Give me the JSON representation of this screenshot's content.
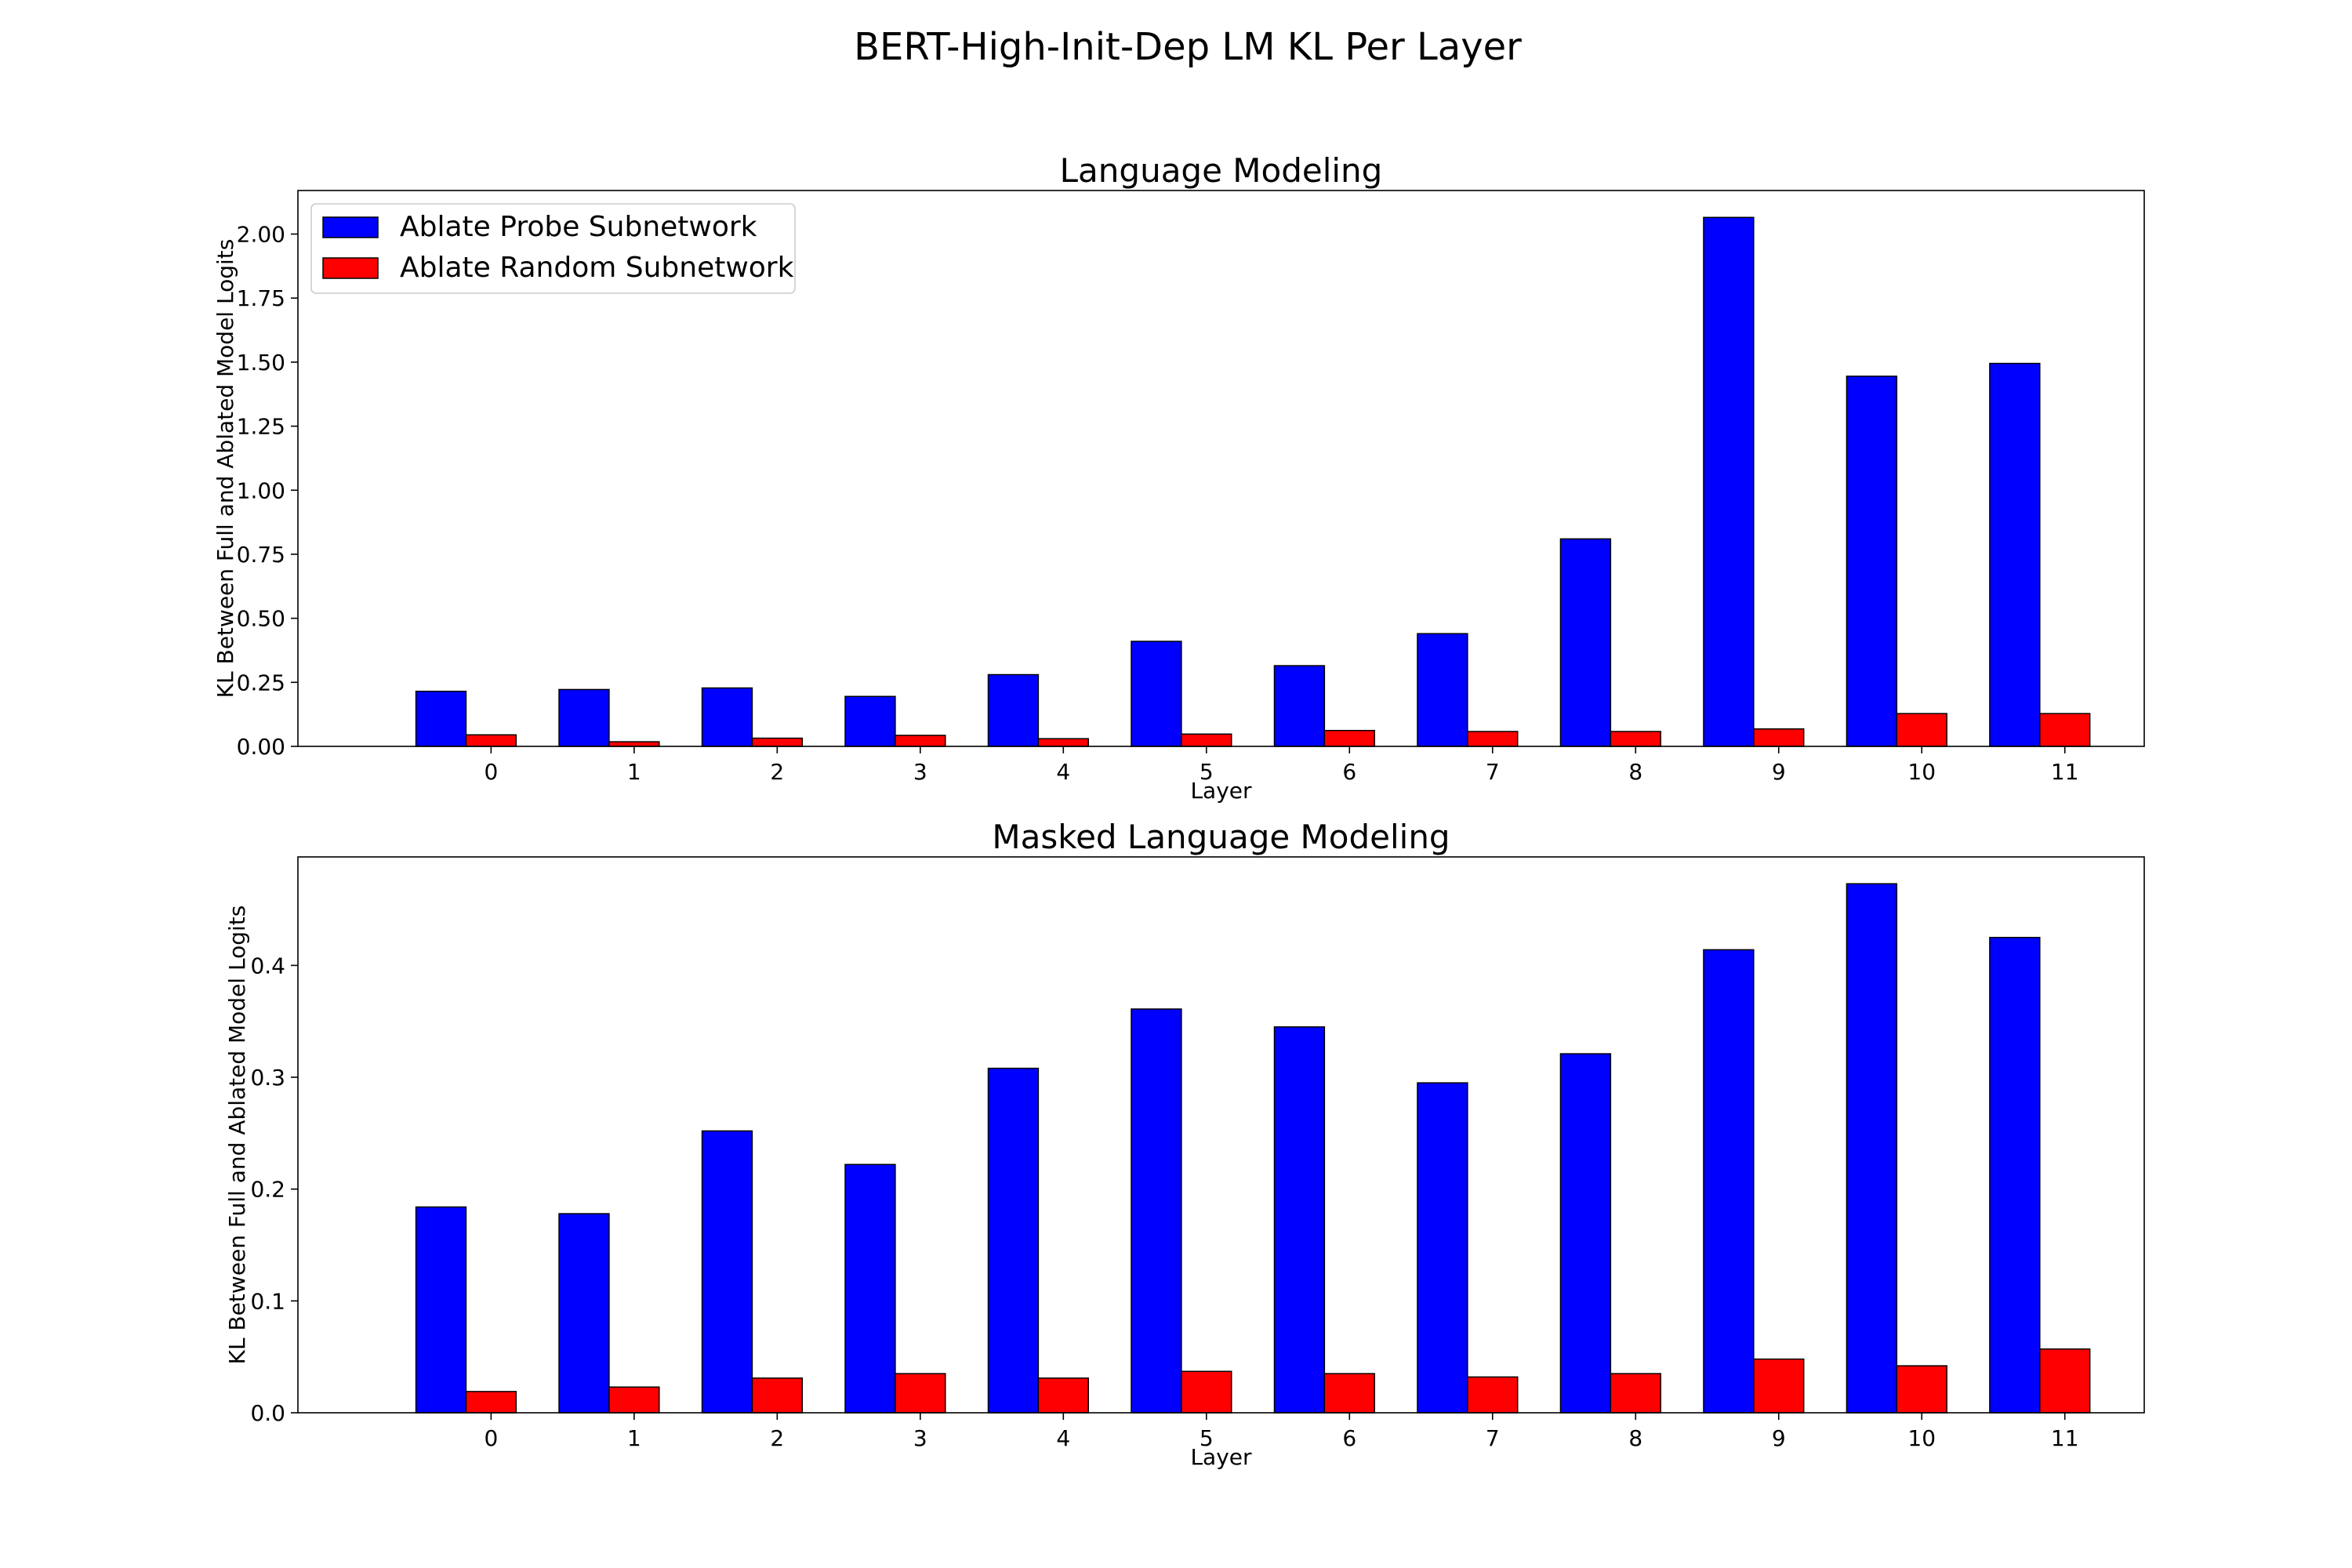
{
  "figure": {
    "suptitle": "BERT-High-Init-Dep LM KL Per Layer"
  },
  "colors": {
    "series_probe": "#0000ff",
    "series_random": "#ff0000",
    "edge": "#000000"
  },
  "chart_data": [
    {
      "type": "bar",
      "title": "Language Modeling",
      "xlabel": "Layer",
      "ylabel": "KL Between Full and Ablated Model Logits",
      "categories": [
        "0",
        "1",
        "2",
        "3",
        "4",
        "5",
        "6",
        "7",
        "8",
        "9",
        "10",
        "11"
      ],
      "ylim": [
        0,
        2.17
      ],
      "yticks": [
        "0.00",
        "0.25",
        "0.50",
        "0.75",
        "1.00",
        "1.25",
        "1.50",
        "1.75",
        "2.00"
      ],
      "grid": false,
      "legend": "upper-left",
      "series": [
        {
          "name": "Ablate Probe Subnetwork",
          "color": "#0000ff",
          "values": [
            0.215,
            0.222,
            0.228,
            0.195,
            0.28,
            0.41,
            0.315,
            0.44,
            0.81,
            2.065,
            1.445,
            1.495
          ]
        },
        {
          "name": "Ablate Random Subnetwork",
          "color": "#ff0000",
          "values": [
            0.045,
            0.018,
            0.032,
            0.043,
            0.03,
            0.048,
            0.062,
            0.058,
            0.058,
            0.068,
            0.128,
            0.128
          ]
        }
      ]
    },
    {
      "type": "bar",
      "title": "Masked Language Modeling",
      "xlabel": "Layer",
      "ylabel": "KL Between Full and Ablated Model Logits",
      "categories": [
        "0",
        "1",
        "2",
        "3",
        "4",
        "5",
        "6",
        "7",
        "8",
        "9",
        "10",
        "11"
      ],
      "ylim": [
        0,
        0.497
      ],
      "yticks": [
        "0.0",
        "0.1",
        "0.2",
        "0.3",
        "0.4"
      ],
      "grid": false,
      "legend": "none",
      "series": [
        {
          "name": "Ablate Probe Subnetwork",
          "color": "#0000ff",
          "values": [
            0.184,
            0.178,
            0.252,
            0.222,
            0.308,
            0.361,
            0.345,
            0.295,
            0.321,
            0.414,
            0.473,
            0.425
          ]
        },
        {
          "name": "Ablate Random Subnetwork",
          "color": "#ff0000",
          "values": [
            0.019,
            0.023,
            0.031,
            0.035,
            0.031,
            0.037,
            0.035,
            0.032,
            0.035,
            0.048,
            0.042,
            0.057
          ]
        }
      ]
    }
  ]
}
